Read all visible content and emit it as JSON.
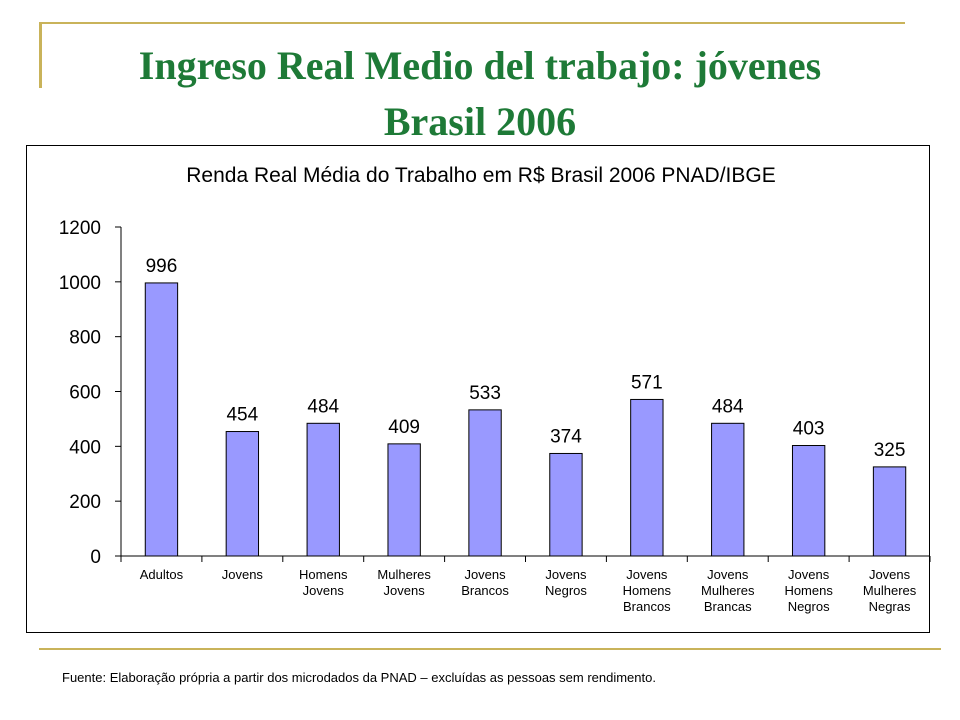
{
  "slide": {
    "title_line1": "Ingreso Real Medio del trabajo: jóvenes",
    "title_line2": "Brasil 2006",
    "source": "Fuente: Elaboração própria a partir dos microdados da PNAD – excluídas as pessoas sem rendimento."
  },
  "colors": {
    "title": "#1e7a37",
    "accent_rule": "#c9b35a",
    "bar_fill": "#9999ff",
    "bar_stroke": "#000000"
  },
  "chart_data": {
    "type": "bar",
    "title": "Renda Real Média do Trabalho em R$ Brasil 2006 PNAD/IBGE",
    "xlabel": "",
    "ylabel": "",
    "ylim": [
      0,
      1200
    ],
    "yticks": [
      0,
      200,
      400,
      600,
      800,
      1000,
      1200
    ],
    "grid": false,
    "legend": "none",
    "categories": [
      [
        "Adultos"
      ],
      [
        "Jovens"
      ],
      [
        "Homens",
        "Jovens"
      ],
      [
        "Mulheres",
        "Jovens"
      ],
      [
        "Jovens",
        "Brancos"
      ],
      [
        "Jovens",
        "Negros"
      ],
      [
        "Jovens",
        "Homens",
        "Brancos"
      ],
      [
        "Jovens",
        "Mulheres",
        "Brancas"
      ],
      [
        "Jovens",
        "Homens",
        "Negros"
      ],
      [
        "Jovens",
        "Mulheres",
        "Negras"
      ]
    ],
    "values": [
      996,
      454,
      484,
      409,
      533,
      374,
      571,
      484,
      403,
      325
    ]
  }
}
